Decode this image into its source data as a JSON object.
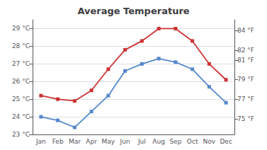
{
  "chart_data": {
    "type": "line",
    "title": "Average Temperature",
    "categories": [
      "Jan",
      "Feb",
      "Mar",
      "Apr",
      "May",
      "Jun",
      "Jul",
      "Aug",
      "Sep",
      "Oct",
      "Nov",
      "Dec"
    ],
    "series": [
      {
        "color": "#cc3333",
        "marker": "square",
        "values": [
          25.2,
          25.0,
          24.9,
          25.5,
          26.7,
          27.8,
          28.3,
          29.0,
          29.0,
          28.3,
          27.0,
          26.1
        ]
      },
      {
        "color": "#5588cc",
        "marker": "square",
        "values": [
          24.0,
          23.8,
          23.4,
          24.3,
          25.2,
          26.6,
          27.0,
          27.3,
          27.1,
          26.7,
          25.7,
          24.8
        ]
      }
    ],
    "ylim": [
      23.0,
      29.5
    ],
    "yticks": [
      {
        "value": 23,
        "label": "23 °C"
      },
      {
        "value": 24,
        "label": "24 °C"
      },
      {
        "value": 25,
        "label": "25 °C"
      },
      {
        "value": 26,
        "label": "26 °C"
      },
      {
        "value": 27,
        "label": "27 °C"
      },
      {
        "value": 28,
        "label": "28 °C"
      },
      {
        "value": 29,
        "label": "29 °C"
      }
    ],
    "y2lim": [
      73.4,
      85.1
    ],
    "y2ticks": [
      {
        "value": 75,
        "label": "75 °F"
      },
      {
        "value": 77,
        "label": "77 °F"
      },
      {
        "value": 79,
        "label": "79 °F"
      },
      {
        "value": 81,
        "label": "81 °F"
      },
      {
        "value": 82,
        "label": "82 °F"
      },
      {
        "value": 84,
        "label": "84 °F"
      }
    ],
    "grid": true
  }
}
